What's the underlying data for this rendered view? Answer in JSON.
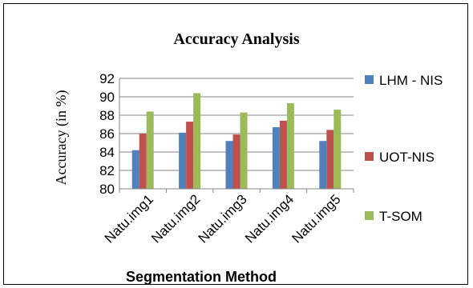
{
  "chart_data": {
    "type": "bar",
    "title": "Accuracy Analysis",
    "xlabel": "Segmentation Method",
    "ylabel": "Accuracy (in %)",
    "categories": [
      "Natu.img1",
      "Natu.img2",
      "Natu.img3",
      "Natu.img4",
      "Natu.img5"
    ],
    "ylim": [
      80,
      92
    ],
    "yticks": [
      80,
      82,
      84,
      86,
      88,
      90,
      92
    ],
    "grid": true,
    "legend_position": "right",
    "series": [
      {
        "name": "LHM - NIS",
        "color": "#4F81BD",
        "values": [
          84.2,
          86.1,
          85.2,
          86.7,
          85.2
        ]
      },
      {
        "name": "UOT-NIS",
        "color": "#C0504D",
        "values": [
          86.0,
          87.3,
          85.9,
          87.4,
          86.4
        ]
      },
      {
        "name": "T-SOM",
        "color": "#9BBB59",
        "values": [
          88.4,
          90.4,
          88.3,
          89.3,
          88.6
        ]
      }
    ]
  }
}
